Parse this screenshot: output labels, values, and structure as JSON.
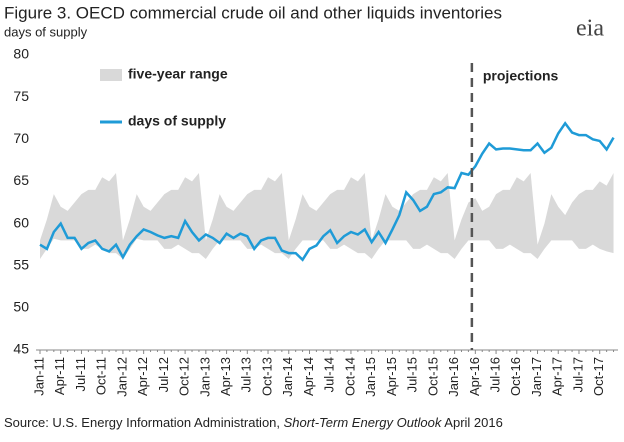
{
  "chart_data": {
    "type": "line",
    "title": "Figure 3. OECD commercial crude oil and other liquids inventories",
    "y_label": "days of supply",
    "logo": "eia",
    "source": {
      "prefix": "Source: U.S. Energy Information Administration, ",
      "publication": "Short-Term Energy Outlook",
      "suffix": " April 2016"
    },
    "categories": [
      "Jan-11",
      null,
      null,
      "Apr-11",
      null,
      null,
      "Jul-11",
      null,
      null,
      "Oct-11",
      null,
      null,
      "Jan-12",
      null,
      null,
      "Apr-12",
      null,
      null,
      "Jul-12",
      null,
      null,
      "Oct-12",
      null,
      null,
      "Jan-13",
      null,
      null,
      "Apr-13",
      null,
      null,
      "Jul-13",
      null,
      null,
      "Oct-13",
      null,
      null,
      "Jan-14",
      null,
      null,
      "Apr-14",
      null,
      null,
      "Jul-14",
      null,
      null,
      "Oct-14",
      null,
      null,
      "Jan-15",
      null,
      null,
      "Apr-15",
      null,
      null,
      "Jul-15",
      null,
      null,
      "Oct-15",
      null,
      null,
      "Jan-16",
      null,
      null,
      "Apr-16",
      null,
      null,
      "Jul-16",
      null,
      null,
      "Oct-16",
      null,
      null,
      "Jan-17",
      null,
      null,
      "Apr-17",
      null,
      null,
      "Jul-17",
      null,
      null,
      "Oct-17",
      null,
      null
    ],
    "series": [
      {
        "name": "five-year range",
        "color": "#d9d9d9",
        "low": [
          55.8,
          57,
          58.2,
          58,
          58,
          58,
          57,
          57,
          57.5,
          57,
          56.5,
          56.5,
          55.8,
          57,
          58.2,
          58,
          58,
          58,
          57,
          57,
          57.5,
          57,
          56.5,
          56.5,
          55.8,
          57,
          58,
          58,
          58,
          58,
          57,
          57,
          57.5,
          57,
          56.5,
          56.5,
          55.8,
          57,
          58,
          58,
          58,
          58,
          57,
          57,
          57.5,
          57,
          56.5,
          56.5,
          55.8,
          57,
          58,
          58,
          58,
          58,
          57,
          57,
          57.5,
          57,
          56.5,
          56.5,
          55.8,
          57,
          58,
          58,
          58,
          58,
          57,
          57,
          57.5,
          57,
          56.5,
          56.5,
          55.8,
          57,
          58,
          58,
          58,
          58,
          57,
          57,
          57.5,
          57,
          56.7,
          56.5
        ],
        "high": [
          58,
          60.5,
          63.5,
          62,
          61.5,
          62.5,
          63.5,
          64,
          64,
          65.5,
          65,
          66,
          58,
          60.5,
          63.5,
          62,
          61.5,
          62.5,
          63.5,
          64,
          64,
          65.5,
          65,
          66,
          58,
          60.5,
          63.5,
          62,
          61.5,
          62.5,
          63.5,
          64,
          64,
          65.5,
          65,
          66,
          58,
          60.5,
          63.5,
          62,
          61.5,
          62.5,
          63.5,
          64,
          64,
          65.5,
          65,
          66,
          58,
          60.5,
          63.5,
          62,
          61.5,
          62.5,
          63.5,
          64,
          64,
          65.5,
          65,
          66,
          58,
          60.5,
          62.5,
          63,
          61.5,
          62,
          63.5,
          64,
          64,
          65.5,
          65,
          66,
          57.5,
          60,
          63.5,
          62,
          61,
          62.5,
          63.5,
          64,
          64,
          65,
          64.5,
          66
        ]
      },
      {
        "name": "days of supply",
        "color": "#1f9bd7",
        "values": [
          57.5,
          57,
          59,
          60,
          58.3,
          58.3,
          57,
          57.7,
          58,
          57,
          56.7,
          57.5,
          56,
          57.5,
          58.5,
          59.3,
          59,
          58.6,
          58.3,
          58.5,
          58.3,
          60.3,
          59,
          58,
          58.7,
          58.3,
          57.7,
          58.8,
          58.3,
          58.8,
          58.5,
          57,
          58,
          58.3,
          58.3,
          56.8,
          56.5,
          56.5,
          55.7,
          57,
          57.4,
          58.5,
          59.2,
          57.7,
          58.5,
          59,
          58.7,
          59.3,
          57.8,
          59,
          57.7,
          59.3,
          61,
          63.7,
          62.8,
          61.5,
          62,
          63.5,
          63.7,
          64.3,
          64.2,
          66,
          65.8,
          66.8,
          68.3,
          69.5,
          68.8,
          68.9,
          68.9,
          68.8,
          68.7,
          68.7,
          69.5,
          68.4,
          69,
          70.7,
          71.9,
          70.8,
          70.5,
          70.5,
          70,
          69.8,
          68.8,
          70.2
        ]
      }
    ],
    "projections": {
      "label": "projections",
      "start": "Apr-16"
    },
    "ylim": [
      45,
      80
    ],
    "yticks": [
      45,
      50,
      55,
      60,
      65,
      70,
      75,
      80
    ]
  }
}
